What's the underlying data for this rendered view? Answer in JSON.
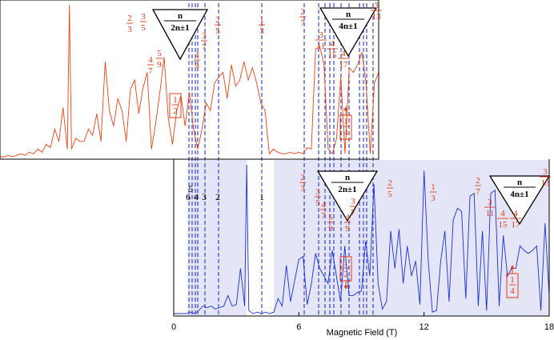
{
  "colors": {
    "red_trace": "#f0410f",
    "blue_trace": "#1b2fdc",
    "fraction_text": "#e8380d",
    "dashed_lines": "#2233dd",
    "shade": "#e4e6f7"
  },
  "chart_data": [
    {
      "type": "line",
      "panel": "top",
      "title": "",
      "xlabel": "",
      "ylabel": "",
      "series": [
        {
          "color": "red",
          "x": [
            0.0,
            0.2,
            0.4,
            0.6,
            0.8,
            1.0,
            1.2,
            1.4,
            1.6,
            1.8,
            2.0,
            2.2,
            2.4,
            2.6,
            2.8,
            3.0,
            3.2,
            3.3,
            3.4,
            3.6,
            3.8,
            4.0,
            4.2,
            4.4,
            4.6,
            4.8,
            5.0,
            5.2,
            5.4,
            5.6,
            5.8,
            6.0,
            6.2,
            6.4,
            6.6,
            6.8,
            7.0,
            7.2,
            7.4,
            7.6,
            7.8,
            8.0,
            8.2,
            8.4,
            8.6,
            8.8,
            9.0,
            9.2,
            9.4,
            9.6,
            9.8,
            10.0,
            10.2,
            10.4,
            10.6,
            10.8,
            11.0,
            11.2,
            11.4,
            11.6,
            11.8,
            12.0,
            12.2,
            12.4,
            12.6,
            12.8,
            13.0,
            13.2,
            13.4,
            13.6,
            13.8,
            14.0,
            14.2,
            14.4,
            14.6,
            14.8,
            15.0,
            15.2,
            15.4,
            15.6,
            15.8,
            16.0,
            16.2,
            16.4,
            16.6,
            16.8,
            17.0,
            17.2,
            17.4,
            17.6,
            17.8,
            18.0
          ],
          "y": [
            0.0,
            0.0,
            0.01,
            0.0,
            0.01,
            0.02,
            0.01,
            0.03,
            0.02,
            0.05,
            0.03,
            0.08,
            0.06,
            0.18,
            0.1,
            0.32,
            0.05,
            0.99,
            0.05,
            0.12,
            0.1,
            0.1,
            0.18,
            0.14,
            0.28,
            0.1,
            0.62,
            0.3,
            0.2,
            0.38,
            0.3,
            0.1,
            0.44,
            0.5,
            0.28,
            0.45,
            0.55,
            0.05,
            0.22,
            0.42,
            0.65,
            0.25,
            0.08,
            0.3,
            0.4,
            0.2,
            0.42,
            0.18,
            0.05,
            0.18,
            0.35,
            0.3,
            0.48,
            0.52,
            0.55,
            0.38,
            0.6,
            0.46,
            0.5,
            0.62,
            0.5,
            0.58,
            0.48,
            0.35,
            0.3,
            0.02,
            0.05,
            0.03,
            0.02,
            0.02,
            0.03,
            0.02,
            0.03,
            0.02,
            0.06,
            0.05,
            0.7,
            0.72,
            0.6,
            0.05,
            0.02,
            0.12,
            0.52,
            0.02,
            0.58,
            0.55,
            0.6,
            0.68,
            0.48,
            0.02,
            0.48,
            0.55
          ]
        }
      ],
      "fraction_labels": [
        {
          "num": "2",
          "den": "3"
        },
        {
          "num": "3",
          "den": "5"
        },
        {
          "num": "4",
          "den": "7"
        },
        {
          "num": "5",
          "den": "9"
        },
        {
          "num": "1",
          "den": "2",
          "boxed": true
        },
        {
          "num": "4",
          "den": "9"
        },
        {
          "num": "3",
          "den": "7"
        },
        {
          "num": "2",
          "den": "5"
        },
        {
          "num": "1",
          "den": "3"
        },
        {
          "num": "2",
          "den": "7"
        },
        {
          "num": "3",
          "den": "11"
        },
        {
          "num": "4",
          "den": "15"
        },
        {
          "num": "1",
          "den": "4",
          "boxed": true
        },
        {
          "num": "4",
          "den": "17"
        },
        {
          "num": "3",
          "den": "13"
        }
      ],
      "sequence_labels": [
        {
          "num": "n",
          "den": "2n±1"
        },
        {
          "num": "n",
          "den": "4n±1"
        }
      ]
    },
    {
      "type": "line",
      "panel": "bottom",
      "title": "",
      "xlabel": "Magnetic Field (T)",
      "ylabel": "",
      "xlim": [
        0,
        18
      ],
      "xticks": [
        "0",
        "6",
        "12",
        "18"
      ],
      "shaded_regions": [
        [
          0.7,
          3.5
        ],
        [
          4.8,
          18.0
        ]
      ],
      "series": [
        {
          "color": "blue",
          "x": [
            0.0,
            0.2,
            0.4,
            0.6,
            0.8,
            1.0,
            1.2,
            1.4,
            1.6,
            1.8,
            2.0,
            2.2,
            2.4,
            2.6,
            2.8,
            3.0,
            3.2,
            3.4,
            3.5,
            3.6,
            3.8,
            4.0,
            4.2,
            4.4,
            4.6,
            4.8,
            5.0,
            5.2,
            5.4,
            5.6,
            5.8,
            6.0,
            6.2,
            6.4,
            6.6,
            6.8,
            7.0,
            7.2,
            7.4,
            7.6,
            7.8,
            8.0,
            8.2,
            8.4,
            8.6,
            8.8,
            9.0,
            9.2,
            9.4,
            9.6,
            9.8,
            10.0,
            10.2,
            10.4,
            10.6,
            10.8,
            11.0,
            11.2,
            11.4,
            11.6,
            11.8,
            12.0,
            12.2,
            12.4,
            12.6,
            12.8,
            13.0,
            13.2,
            13.4,
            13.6,
            13.8,
            14.0,
            14.2,
            14.4,
            14.6,
            14.8,
            15.0,
            15.2,
            15.4,
            15.6,
            15.8,
            16.0,
            16.2,
            16.4,
            16.6,
            16.8,
            17.0,
            17.2,
            17.4,
            17.6,
            17.8,
            18.0
          ],
          "y": [
            0.0,
            0.0,
            0.0,
            0.0,
            0.01,
            0.0,
            0.02,
            0.05,
            0.04,
            0.05,
            0.03,
            0.04,
            0.05,
            0.12,
            0.05,
            0.06,
            0.3,
            0.05,
            0.99,
            0.02,
            0.0,
            0.01,
            0.0,
            0.01,
            0.0,
            0.01,
            0.1,
            0.05,
            0.32,
            0.08,
            0.22,
            0.36,
            0.38,
            0.06,
            0.2,
            0.4,
            0.3,
            0.25,
            0.2,
            0.42,
            0.25,
            0.08,
            0.45,
            0.12,
            0.12,
            0.14,
            0.15,
            0.48,
            0.25,
            0.86,
            0.2,
            0.03,
            0.08,
            0.55,
            0.3,
            0.56,
            0.2,
            0.45,
            0.25,
            0.35,
            0.06,
            0.95,
            0.35,
            0.01,
            0.02,
            0.35,
            0.55,
            0.08,
            0.62,
            0.7,
            0.68,
            0.1,
            0.78,
            0.8,
            0.05,
            0.55,
            0.02,
            0.8,
            0.82,
            0.05,
            0.52,
            0.25,
            0.3,
            0.3,
            0.45,
            0.42,
            0.4,
            0.42,
            0.45,
            0.02,
            0.6,
            0.12
          ]
        }
      ],
      "integer_labels": [
        "6",
        "5",
        "4",
        "3",
        "2",
        "1"
      ],
      "fraction_labels": [
        {
          "num": "2",
          "den": "3"
        },
        {
          "num": "3",
          "den": "5"
        },
        {
          "num": "4",
          "den": "7"
        },
        {
          "num": "5",
          "den": "9"
        },
        {
          "num": "1",
          "den": "2",
          "boxed": true
        },
        {
          "num": "4",
          "den": "9"
        },
        {
          "num": "3",
          "den": "7"
        },
        {
          "num": "2",
          "den": "5"
        },
        {
          "num": "1",
          "den": "3"
        },
        {
          "num": "2",
          "den": "7"
        },
        {
          "num": "3",
          "den": "11"
        },
        {
          "num": "4",
          "den": "15"
        },
        {
          "num": "1",
          "den": "4",
          "boxed": true
        },
        {
          "num": "4",
          "den": "17"
        },
        {
          "num": "3",
          "den": "13"
        }
      ],
      "sequence_labels": [
        {
          "num": "n",
          "den": "2n±1"
        },
        {
          "num": "n",
          "den": "4n±1"
        }
      ]
    }
  ]
}
